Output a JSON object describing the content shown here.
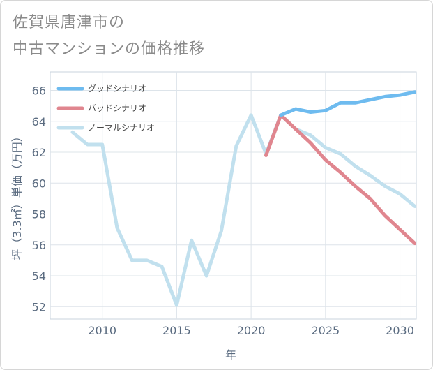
{
  "title": {
    "line1": "佐賀県唐津市の",
    "line2": "中古マンションの価格推移"
  },
  "chart_data": {
    "type": "line",
    "xlabel": "年",
    "ylabel": "坪（3.3㎡）単価（万円）",
    "xlim": [
      2006.5,
      2031.1
    ],
    "ylim": [
      51.2,
      67.2
    ],
    "xticks": [
      2010,
      2015,
      2020,
      2025,
      2030
    ],
    "yticks": [
      52,
      54,
      56,
      58,
      60,
      62,
      64,
      66
    ],
    "grid": true,
    "legend_position": "top-left",
    "series": [
      {
        "name": "ノーマルシナリオ",
        "color": "#c1e0ee",
        "x": [
          2008,
          2009,
          2010,
          2011,
          2012,
          2013,
          2014,
          2015,
          2016,
          2017,
          2018,
          2019,
          2020,
          2021,
          2022,
          2023,
          2024,
          2025,
          2026,
          2027,
          2028,
          2029,
          2030,
          2031
        ],
        "y": [
          63.3,
          62.5,
          62.5,
          57.1,
          55.0,
          55.0,
          54.6,
          52.1,
          56.3,
          54.0,
          56.9,
          62.4,
          64.4,
          61.9,
          64.4,
          63.5,
          63.1,
          62.3,
          61.9,
          61.1,
          60.5,
          59.8,
          59.3,
          58.5
        ]
      },
      {
        "name": "バッドシナリオ",
        "color": "#e0868f",
        "x": [
          2021,
          2022,
          2023,
          2024,
          2025,
          2026,
          2027,
          2028,
          2029,
          2030,
          2031
        ],
        "y": [
          61.8,
          64.4,
          63.5,
          62.6,
          61.5,
          60.7,
          59.8,
          59.0,
          57.9,
          57.0,
          56.1
        ]
      },
      {
        "name": "グッドシナリオ",
        "color": "#6ebbef",
        "x": [
          2022,
          2023,
          2024,
          2025,
          2026,
          2027,
          2028,
          2029,
          2030,
          2031
        ],
        "y": [
          64.4,
          64.8,
          64.6,
          64.7,
          65.2,
          65.2,
          65.4,
          65.6,
          65.7,
          65.9
        ]
      }
    ],
    "legend": [
      {
        "label": "グッドシナリオ",
        "color": "#6ebbef"
      },
      {
        "label": "バッドシナリオ",
        "color": "#e0868f"
      },
      {
        "label": "ノーマルシナリオ",
        "color": "#c1e0ee"
      }
    ]
  }
}
